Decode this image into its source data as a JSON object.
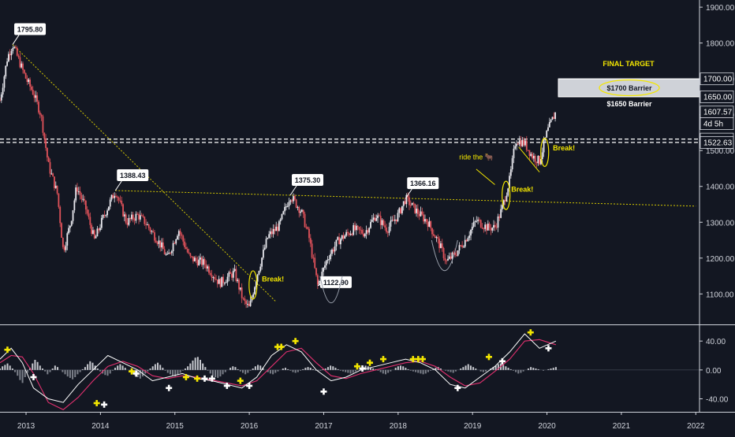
{
  "theme": {
    "background": "#131722",
    "axis_text": "#d1d4dc",
    "up_candle": "#e8e8ee",
    "down_candle": "#e0525a",
    "annotation": "#f3e600",
    "macd_line": "#ffffff",
    "signal_line": "#e0306e"
  },
  "chart_data": [
    {
      "type": "candlestick",
      "series": [
        {
          "name": "price (weekly)"
        }
      ],
      "x_ticks": [
        "2013",
        "2014",
        "2015",
        "2016",
        "2017",
        "2018",
        "2019",
        "2020",
        "2021",
        "2022"
      ],
      "xlim": [
        2012.65,
        2022.05
      ],
      "y_ticks": [
        "1100.00",
        "1200.00",
        "1300.00",
        "1400.00",
        "1500.00",
        "1600.00",
        "1700.00",
        "1800.00",
        "1900.00"
      ],
      "y_tick_values": [
        1100,
        1200,
        1300,
        1400,
        1500,
        1600,
        1700,
        1800,
        1900
      ],
      "ylim": [
        1015,
        1920
      ],
      "path_points": [
        [
          2012.65,
          1640
        ],
        [
          2012.75,
          1760
        ],
        [
          2012.82,
          1795.8
        ],
        [
          2013.0,
          1700
        ],
        [
          2013.1,
          1660
        ],
        [
          2013.2,
          1600
        ],
        [
          2013.3,
          1460
        ],
        [
          2013.42,
          1380
        ],
        [
          2013.5,
          1220
        ],
        [
          2013.6,
          1300
        ],
        [
          2013.68,
          1400
        ],
        [
          2013.8,
          1340
        ],
        [
          2013.92,
          1250
        ],
        [
          2014.05,
          1320
        ],
        [
          2014.2,
          1388.43
        ],
        [
          2014.35,
          1300
        ],
        [
          2014.5,
          1320
        ],
        [
          2014.6,
          1300
        ],
        [
          2014.8,
          1240
        ],
        [
          2014.9,
          1200
        ],
        [
          2015.05,
          1280
        ],
        [
          2015.2,
          1200
        ],
        [
          2015.4,
          1185
        ],
        [
          2015.6,
          1130
        ],
        [
          2015.8,
          1160
        ],
        [
          2015.92,
          1080
        ],
        [
          2016.0,
          1060
        ],
        [
          2016.1,
          1150
        ],
        [
          2016.25,
          1260
        ],
        [
          2016.4,
          1290
        ],
        [
          2016.55,
          1375.3
        ],
        [
          2016.7,
          1330
        ],
        [
          2016.8,
          1260
        ],
        [
          2016.92,
          1122.9
        ],
        [
          2017.05,
          1200
        ],
        [
          2017.2,
          1250
        ],
        [
          2017.4,
          1280
        ],
        [
          2017.55,
          1270
        ],
        [
          2017.7,
          1320
        ],
        [
          2017.85,
          1280
        ],
        [
          2018.0,
          1320
        ],
        [
          2018.1,
          1366.16
        ],
        [
          2018.25,
          1330
        ],
        [
          2018.4,
          1300
        ],
        [
          2018.55,
          1240
        ],
        [
          2018.65,
          1190
        ],
        [
          2018.78,
          1215
        ],
        [
          2018.9,
          1250
        ],
        [
          2019.05,
          1305
        ],
        [
          2019.2,
          1285
        ],
        [
          2019.3,
          1285
        ],
        [
          2019.4,
          1340
        ],
        [
          2019.5,
          1420
        ],
        [
          2019.58,
          1530
        ],
        [
          2019.7,
          1520
        ],
        [
          2019.8,
          1485
        ],
        [
          2019.9,
          1470
        ],
        [
          2020.0,
          1550
        ],
        [
          2020.08,
          1590
        ],
        [
          2020.12,
          1607.57
        ]
      ],
      "price_labels": [
        {
          "x": 2012.82,
          "y": 1795.8,
          "text": "1795.80"
        },
        {
          "x": 2014.2,
          "y": 1388.43,
          "text": "1388.43"
        },
        {
          "x": 2016.55,
          "y": 1375.3,
          "text": "1375.30"
        },
        {
          "x": 2016.92,
          "y": 1122.9,
          "text": "1122.90"
        },
        {
          "x": 2018.1,
          "y": 1366.16,
          "text": "1366.16"
        }
      ],
      "right_axis_badges": [
        {
          "y": 1700,
          "text": "1700.00"
        },
        {
          "y": 1650,
          "text": "1650.00"
        },
        {
          "y": 1607.57,
          "text": "1607.57"
        },
        {
          "y": 1575,
          "text": "4d 5h"
        },
        {
          "y": 1532.01,
          "text": "1532.01"
        },
        {
          "y": 1522.63,
          "text": "1522.63"
        }
      ],
      "barrier_zone": {
        "upper": 1700,
        "lower": 1650,
        "label": "$1700 Barrier",
        "below_label": "$1650 Barrier",
        "title": "FINAL TARGET"
      },
      "dashed_levels": [
        1532.01,
        1522.63
      ],
      "trendline_down": {
        "from": [
          2012.82,
          1795.8
        ],
        "to": [
          2016.35,
          1080
        ]
      },
      "trendline_flat": {
        "from": [
          2014.2,
          1388.43
        ],
        "to": [
          2022.0,
          1345
        ]
      },
      "break_labels": [
        {
          "x": 2016.17,
          "y": 1135,
          "text": "Break!"
        },
        {
          "x": 2019.52,
          "y": 1385,
          "text": "Break!"
        },
        {
          "x": 2020.08,
          "y": 1500,
          "text": "Break!"
        }
      ],
      "break_ellipses": [
        {
          "x": 2016.05,
          "y": 1125
        },
        {
          "x": 2019.45,
          "y": 1375
        },
        {
          "x": 2019.97,
          "y": 1495
        }
      ],
      "ride_label": {
        "x": 2018.82,
        "y": 1475,
        "text": "ride the 🐂"
      },
      "cups": [
        [
          2016.95,
          2017.25
        ],
        [
          2018.45,
          2018.8
        ]
      ]
    },
    {
      "type": "macd",
      "y_ticks": [
        "40.00",
        "0.00",
        "-40.00"
      ],
      "y_tick_values": [
        40,
        0,
        -40
      ],
      "ylim": [
        -58,
        62
      ],
      "histogram": [
        2,
        5,
        7,
        9,
        6,
        2,
        -3,
        -8,
        -14,
        -18,
        -10,
        -4,
        3,
        9,
        14,
        11,
        6,
        2,
        -2,
        -6,
        -3,
        2,
        6,
        4,
        0,
        -3,
        -6,
        -9,
        -11,
        -13,
        -10,
        -6,
        -3,
        1,
        4,
        8,
        12,
        10,
        6,
        2,
        -2,
        -5,
        -7,
        -8,
        -5,
        -1,
        3,
        6,
        8,
        6,
        3,
        0,
        -3,
        -6,
        -8,
        -10,
        -12,
        -9,
        -5,
        -2,
        2,
        5,
        8,
        10,
        7,
        3,
        -1,
        -4,
        -6,
        -8,
        -9,
        -7,
        -4,
        -1,
        2,
        5,
        9,
        13,
        17,
        18,
        14,
        9,
        4,
        -1,
        -5,
        -8,
        -10,
        -11,
        -9,
        -6,
        -3,
        0,
        3,
        5,
        4,
        1,
        -2,
        -4,
        -6,
        -4,
        -1,
        2,
        5,
        7,
        6,
        3,
        0,
        -3,
        -5,
        -6,
        -4,
        -2,
        0,
        2,
        3,
        1,
        -1,
        -3,
        -4,
        -3,
        -1,
        1,
        3,
        4,
        3,
        1,
        -1,
        -2,
        -1,
        1,
        2,
        4,
        6,
        5,
        3,
        1,
        -1,
        -2,
        -3,
        -4,
        -5,
        -4,
        -2,
        0,
        2,
        4,
        6,
        5,
        3,
        2,
        1,
        -1,
        -3,
        -5,
        -6,
        -4,
        -2,
        0,
        3,
        5,
        6,
        5,
        3,
        1,
        -1,
        -2,
        -3,
        -4,
        -5,
        -6,
        -5,
        -3,
        -1,
        1,
        3,
        4,
        2,
        0,
        -1,
        -2,
        -3,
        -4,
        -2,
        0,
        2,
        4,
        6,
        8,
        6,
        4,
        2,
        0,
        -2,
        -3,
        -2,
        0,
        2,
        4,
        6,
        8,
        9,
        7,
        5,
        3,
        1,
        -1,
        -3,
        -5,
        -4,
        -2,
        0,
        2,
        4,
        3,
        2,
        1,
        0,
        -1,
        0,
        1,
        2,
        3,
        4
      ],
      "macd_x": [
        2012.65,
        2012.8,
        2012.95,
        2013.1,
        2013.3,
        2013.5,
        2013.7,
        2013.9,
        2014.1,
        2014.3,
        2014.5,
        2014.7,
        2014.9,
        2015.1,
        2015.3,
        2015.5,
        2015.7,
        2015.9,
        2016.1,
        2016.3,
        2016.5,
        2016.7,
        2016.9,
        2017.1,
        2017.3,
        2017.5,
        2017.7,
        2017.9,
        2018.1,
        2018.3,
        2018.5,
        2018.7,
        2018.9,
        2019.1,
        2019.3,
        2019.5,
        2019.7,
        2019.9,
        2020.12
      ],
      "macd_values": [
        15,
        30,
        10,
        -25,
        -40,
        -45,
        -20,
        0,
        20,
        10,
        0,
        -15,
        -10,
        -5,
        -12,
        -15,
        -20,
        -25,
        -10,
        20,
        35,
        25,
        0,
        -15,
        -10,
        0,
        5,
        10,
        15,
        10,
        0,
        -20,
        -25,
        -10,
        5,
        25,
        50,
        30,
        40
      ],
      "signal_values": [
        10,
        20,
        18,
        -5,
        -45,
        -55,
        -38,
        -15,
        5,
        12,
        5,
        -8,
        -12,
        -8,
        -10,
        -14,
        -18,
        -22,
        -15,
        5,
        25,
        30,
        10,
        -8,
        -12,
        -5,
        0,
        5,
        10,
        12,
        5,
        -10,
        -22,
        -18,
        -2,
        15,
        40,
        42,
        35
      ],
      "plus_markers": [
        [
          2012.75,
          28,
          "y"
        ],
        [
          2013.1,
          -10,
          "w"
        ],
        [
          2013.95,
          -46,
          "y"
        ],
        [
          2014.05,
          -48,
          "w"
        ],
        [
          2014.42,
          -2,
          "y"
        ],
        [
          2014.48,
          -5,
          "w"
        ],
        [
          2014.92,
          -25,
          "w"
        ],
        [
          2015.15,
          -10,
          "y"
        ],
        [
          2015.3,
          -12,
          "y"
        ],
        [
          2015.4,
          -12,
          "w"
        ],
        [
          2015.5,
          -12,
          "w"
        ],
        [
          2015.7,
          -22,
          "w"
        ],
        [
          2015.88,
          -15,
          "y"
        ],
        [
          2016.0,
          -22,
          "w"
        ],
        [
          2016.38,
          32,
          "y"
        ],
        [
          2016.43,
          32,
          "y"
        ],
        [
          2016.62,
          40,
          "y"
        ],
        [
          2017.0,
          -30,
          "w"
        ],
        [
          2017.45,
          5,
          "y"
        ],
        [
          2017.52,
          2,
          "w"
        ],
        [
          2017.62,
          10,
          "y"
        ],
        [
          2017.8,
          15,
          "y"
        ],
        [
          2018.2,
          15,
          "y"
        ],
        [
          2018.27,
          15,
          "y"
        ],
        [
          2018.33,
          15,
          "y"
        ],
        [
          2018.8,
          -25,
          "w"
        ],
        [
          2019.22,
          18,
          "y"
        ],
        [
          2019.4,
          12,
          "w"
        ],
        [
          2019.78,
          52,
          "y"
        ],
        [
          2020.02,
          30,
          "w"
        ]
      ]
    }
  ]
}
